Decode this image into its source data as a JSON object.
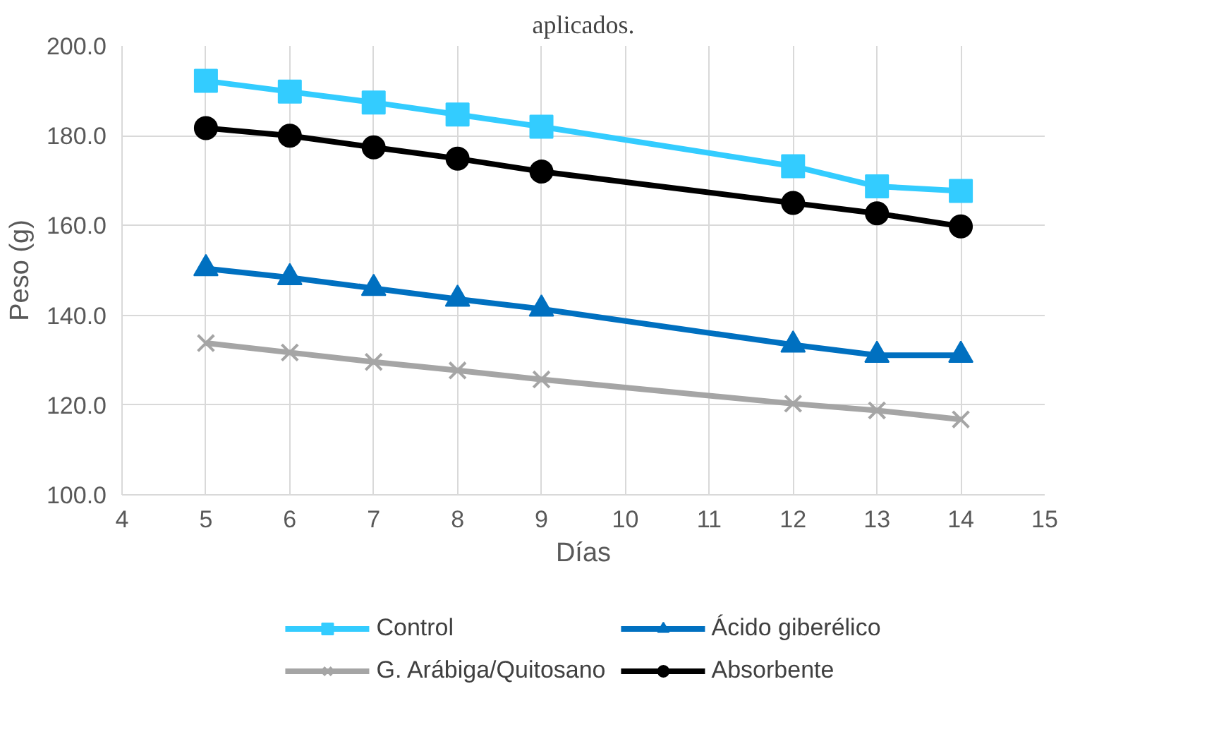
{
  "chart_data": {
    "type": "line",
    "title": "aplicados.",
    "xlabel": "Días",
    "ylabel": "Peso (g)",
    "x": [
      5,
      6,
      7,
      8,
      9,
      12,
      13,
      14
    ],
    "xlim": [
      4,
      15
    ],
    "xticks": [
      4,
      5,
      6,
      7,
      8,
      9,
      10,
      11,
      12,
      13,
      14,
      15
    ],
    "ylim": [
      100,
      200
    ],
    "yticks": [
      {
        "value": 100,
        "label": "100.0"
      },
      {
        "value": 120,
        "label": "120.0"
      },
      {
        "value": 140,
        "label": "140.0"
      },
      {
        "value": 160,
        "label": "160.0"
      },
      {
        "value": 180,
        "label": "180.0"
      },
      {
        "value": 200,
        "label": "200.0"
      }
    ],
    "grid": true,
    "legend": "bottom",
    "line_style": "solid",
    "series": [
      {
        "name": "Control",
        "color": "#33ccff",
        "marker": "square",
        "values": [
          192.2,
          189.8,
          187.4,
          184.7,
          182.0,
          173.2,
          168.7,
          167.7
        ]
      },
      {
        "name": "Ácido giberélico",
        "color": "#0070c0",
        "marker": "triangle",
        "values": [
          150.4,
          148.4,
          146.0,
          143.6,
          141.4,
          133.4,
          131.1,
          131.1
        ]
      },
      {
        "name": "G. Arábiga/Quitosano",
        "color": "#a5a5a5",
        "marker": "cross",
        "values": [
          133.8,
          131.7,
          129.6,
          127.7,
          125.7,
          120.3,
          118.8,
          116.8
        ]
      },
      {
        "name": "Absorbente",
        "color": "#000000",
        "marker": "circle",
        "values": [
          181.7,
          180.0,
          177.4,
          174.9,
          172.0,
          165.0,
          162.7,
          159.8
        ]
      }
    ]
  }
}
